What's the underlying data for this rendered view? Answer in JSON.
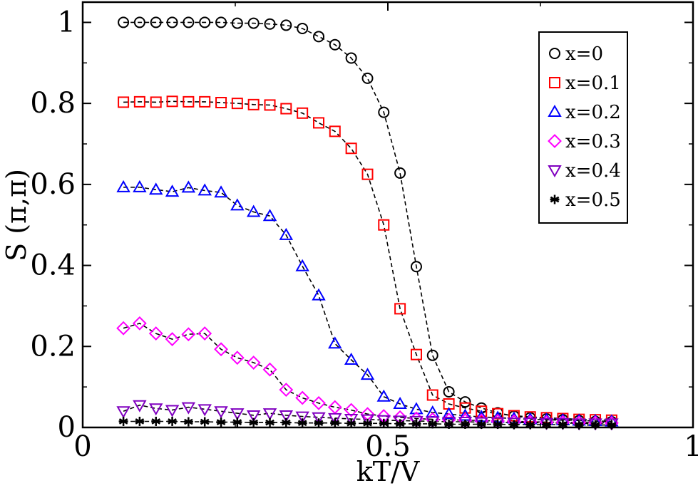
{
  "chart_data": {
    "type": "scatter",
    "xlabel": "kT/V",
    "ylabel": "S (π,π)",
    "xlim": [
      0,
      1
    ],
    "ylim": [
      0,
      1.05
    ],
    "xticks": [
      0,
      0.5,
      1
    ],
    "xtick_labels": [
      "0",
      "0.5",
      "1"
    ],
    "yticks": [
      0,
      0.2,
      0.4,
      0.6,
      0.8,
      1
    ],
    "ytick_labels": [
      "0",
      "0.2",
      "0.4",
      "0.6",
      "0.8",
      "1"
    ],
    "grid": false,
    "legend_position": "top-right",
    "series": [
      {
        "name": "x=0",
        "marker": "circle",
        "color": "#000000",
        "x": [
          0.0667,
          0.0933,
          0.12,
          0.1467,
          0.1733,
          0.2,
          0.2267,
          0.2533,
          0.28,
          0.3067,
          0.3333,
          0.36,
          0.3867,
          0.4133,
          0.44,
          0.4667,
          0.4933,
          0.52,
          0.5467,
          0.5733,
          0.6,
          0.6267,
          0.6533,
          0.68,
          0.7067,
          0.7333,
          0.76,
          0.7867,
          0.8133,
          0.84,
          0.8667
        ],
        "y": [
          1.0,
          1.0,
          1.0,
          1.0,
          1.0,
          1.0,
          1.0,
          0.998,
          0.998,
          0.996,
          0.993,
          0.985,
          0.965,
          0.945,
          0.912,
          0.862,
          0.778,
          0.628,
          0.397,
          0.178,
          0.088,
          0.063,
          0.048,
          0.036,
          0.028,
          0.024,
          0.021,
          0.019,
          0.017,
          0.015,
          0.014
        ]
      },
      {
        "name": "x=0.1",
        "marker": "square",
        "color": "#ff0000",
        "x": [
          0.0667,
          0.0933,
          0.12,
          0.1467,
          0.1733,
          0.2,
          0.2267,
          0.2533,
          0.28,
          0.3067,
          0.3333,
          0.36,
          0.3867,
          0.4133,
          0.44,
          0.4667,
          0.4933,
          0.52,
          0.5467,
          0.5733,
          0.6,
          0.6267,
          0.6533,
          0.68,
          0.7067,
          0.7333,
          0.76,
          0.7867,
          0.8133,
          0.84,
          0.8667
        ],
        "y": [
          0.803,
          0.804,
          0.803,
          0.805,
          0.804,
          0.804,
          0.802,
          0.8,
          0.797,
          0.796,
          0.787,
          0.776,
          0.752,
          0.731,
          0.689,
          0.625,
          0.5,
          0.293,
          0.18,
          0.08,
          0.058,
          0.048,
          0.04,
          0.034,
          0.029,
          0.026,
          0.024,
          0.022,
          0.02,
          0.019,
          0.018
        ]
      },
      {
        "name": "x=0.2",
        "marker": "triangle-up",
        "color": "#0000ff",
        "x": [
          0.0667,
          0.0933,
          0.12,
          0.1467,
          0.1733,
          0.2,
          0.2267,
          0.2533,
          0.28,
          0.3067,
          0.3333,
          0.36,
          0.3867,
          0.4133,
          0.44,
          0.4667,
          0.4933,
          0.52,
          0.5467,
          0.5733,
          0.6,
          0.6267,
          0.6533,
          0.68,
          0.7067,
          0.7333,
          0.76,
          0.7867,
          0.8133,
          0.84,
          0.8667
        ],
        "y": [
          0.593,
          0.593,
          0.587,
          0.582,
          0.592,
          0.585,
          0.58,
          0.548,
          0.532,
          0.522,
          0.475,
          0.398,
          0.326,
          0.207,
          0.167,
          0.13,
          0.076,
          0.058,
          0.045,
          0.037,
          0.033,
          0.029,
          0.026,
          0.024,
          0.022,
          0.02,
          0.019,
          0.018,
          0.017,
          0.016,
          0.015
        ]
      },
      {
        "name": "x=0.3",
        "marker": "diamond",
        "color": "#ff00ff",
        "x": [
          0.0667,
          0.0933,
          0.12,
          0.1467,
          0.1733,
          0.2,
          0.2267,
          0.2533,
          0.28,
          0.3067,
          0.3333,
          0.36,
          0.3867,
          0.4133,
          0.44,
          0.4667,
          0.4933,
          0.52,
          0.5467,
          0.5733,
          0.6,
          0.6267,
          0.6533,
          0.68,
          0.7067,
          0.7333,
          0.76,
          0.7867,
          0.8133,
          0.84,
          0.8667
        ],
        "y": [
          0.245,
          0.257,
          0.232,
          0.218,
          0.23,
          0.232,
          0.193,
          0.172,
          0.16,
          0.143,
          0.093,
          0.073,
          0.06,
          0.05,
          0.043,
          0.033,
          0.028,
          0.025,
          0.022,
          0.02,
          0.019,
          0.018,
          0.017,
          0.016,
          0.015,
          0.014,
          0.013,
          0.013,
          0.012,
          0.012,
          0.011
        ]
      },
      {
        "name": "x=0.4",
        "marker": "triangle-down",
        "color": "#8000c0",
        "x": [
          0.0667,
          0.0933,
          0.12,
          0.1467,
          0.1733,
          0.2,
          0.2267,
          0.2533,
          0.28,
          0.3067,
          0.3333,
          0.36,
          0.3867,
          0.4133,
          0.44,
          0.4667,
          0.4933,
          0.52,
          0.5467,
          0.5733,
          0.6,
          0.6267,
          0.6533,
          0.68,
          0.7067,
          0.7333,
          0.76,
          0.7867,
          0.8133,
          0.84,
          0.8667
        ],
        "y": [
          0.04,
          0.055,
          0.047,
          0.043,
          0.05,
          0.045,
          0.04,
          0.035,
          0.03,
          0.035,
          0.03,
          0.027,
          0.025,
          0.023,
          0.021,
          0.02,
          0.018,
          0.017,
          0.016,
          0.015,
          0.014,
          0.014,
          0.013,
          0.013,
          0.012,
          0.012,
          0.011,
          0.011,
          0.01,
          0.01,
          0.01
        ]
      },
      {
        "name": "x=0.5",
        "marker": "asterisk",
        "color": "#000000",
        "x": [
          0.0667,
          0.0933,
          0.12,
          0.1467,
          0.1733,
          0.2,
          0.2267,
          0.2533,
          0.28,
          0.3067,
          0.3333,
          0.36,
          0.3867,
          0.4133,
          0.44,
          0.4667,
          0.4933,
          0.52,
          0.5467,
          0.5733,
          0.6,
          0.6267,
          0.6533,
          0.68,
          0.7067,
          0.7333,
          0.76,
          0.7867,
          0.8133,
          0.84,
          0.8667
        ],
        "y": [
          0.015,
          0.015,
          0.015,
          0.015,
          0.014,
          0.014,
          0.013,
          0.013,
          0.012,
          0.012,
          0.012,
          0.011,
          0.011,
          0.011,
          0.01,
          0.01,
          0.01,
          0.009,
          0.009,
          0.009,
          0.008,
          0.008,
          0.008,
          0.008,
          0.007,
          0.007,
          0.007,
          0.007,
          0.006,
          0.006,
          0.006
        ]
      }
    ]
  }
}
